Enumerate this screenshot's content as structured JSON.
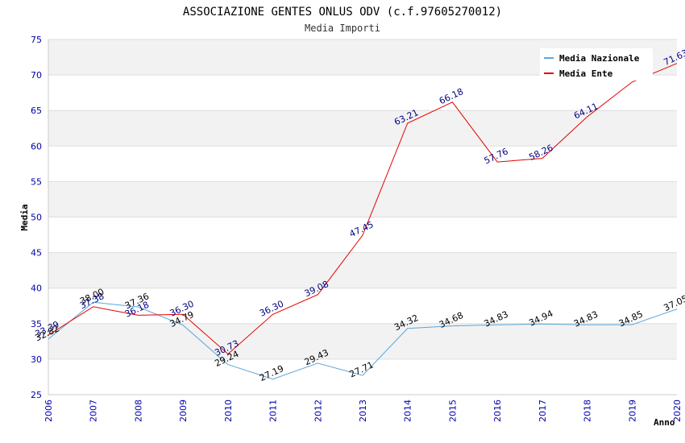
{
  "chart_data": {
    "type": "line",
    "title": "ASSOCIAZIONE GENTES ONLUS ODV (c.f.97605270012)",
    "subtitle": "Media Importi",
    "ylabel": "Media",
    "xlabel": "Anno",
    "ylim": [
      25,
      75
    ],
    "yticks": [
      "25",
      "30",
      "35",
      "40",
      "45",
      "50",
      "55",
      "60",
      "65",
      "70",
      "75"
    ],
    "categories": [
      "2006",
      "2007",
      "2008",
      "2009",
      "2010",
      "2011",
      "2012",
      "2013",
      "2014",
      "2015",
      "2016",
      "2017",
      "2018",
      "2019",
      "2020"
    ],
    "series": [
      {
        "name": "Media Nazionale",
        "color": "#5aa5dc",
        "label_color": "#000000",
        "values": [
          32.82,
          38.0,
          37.36,
          34.79,
          29.24,
          27.19,
          29.43,
          27.71,
          34.32,
          34.68,
          34.83,
          34.94,
          34.83,
          34.85,
          37.05
        ],
        "labels": [
          "32.82",
          "38.00",
          "37.36",
          "34.79",
          "29.24",
          "27.19",
          "29.43",
          "27.71",
          "34.32",
          "34.68",
          "34.83",
          "34.94",
          "34.83",
          "34.85",
          "37.05"
        ]
      },
      {
        "name": "Media Ente",
        "color": "#e60000",
        "label_color": "#000080",
        "values": [
          33.39,
          37.38,
          36.18,
          36.3,
          30.73,
          36.3,
          39.08,
          47.45,
          63.21,
          66.18,
          57.76,
          58.26,
          64.11,
          69.0,
          71.63
        ],
        "labels": [
          "33.39",
          "37.38",
          "36.18",
          "36.30",
          "30.73",
          "36.30",
          "39.08",
          "47.45",
          "63.21",
          "66.18",
          "57.76",
          "58.26",
          "64.11",
          "",
          "71.63"
        ]
      }
    ],
    "grid": true,
    "legend_position": "top-right"
  }
}
